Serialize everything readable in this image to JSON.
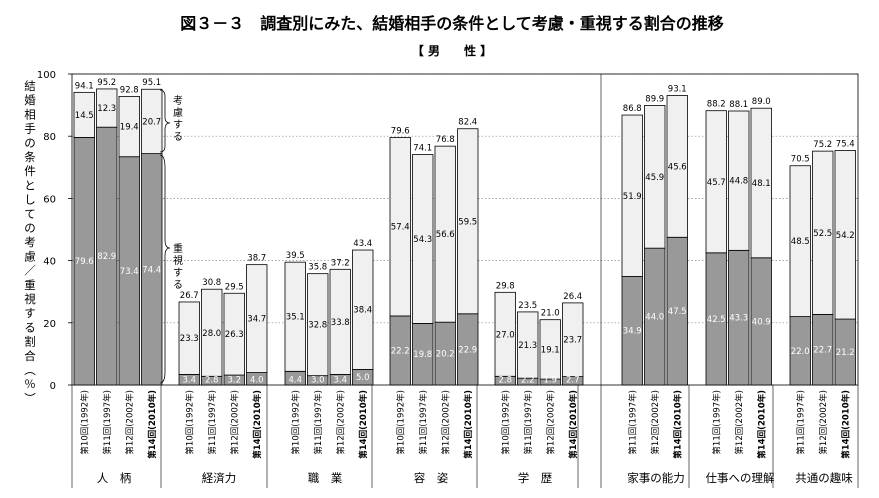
{
  "chart_data": {
    "type": "bar",
    "stacked": true,
    "title": "図３－３　調査別にみた、結婚相手の条件として考慮・重視する割合の推移",
    "subtitle": "【 男　　性 】",
    "ylabel": "結婚相手の条件としての考慮／重視する割合（％）",
    "ylim": [
      0,
      100
    ],
    "yticks": [
      0,
      20,
      40,
      60,
      80,
      100
    ],
    "grid": "dotted-horizontal",
    "series": [
      {
        "name": "重視する",
        "color": "#999999"
      },
      {
        "name": "考慮する",
        "color": "#f0f0f0"
      }
    ],
    "annotations": [
      "考慮する",
      "重視する"
    ],
    "groups": [
      {
        "label": "人　柄",
        "bars": [
          {
            "survey": "第10回(1992年)",
            "total": "94.1",
            "upper": "14.5",
            "lower": "79.6",
            "v_lower": 79.6,
            "v_total": 94.1
          },
          {
            "survey": "第11回(1997年)",
            "total": "95.2",
            "upper": "12.3",
            "lower": "82.9",
            "v_lower": 82.9,
            "v_total": 95.2
          },
          {
            "survey": "第12回(2002年)",
            "total": "92.8",
            "upper": "19.4",
            "lower": "73.4",
            "v_lower": 73.4,
            "v_total": 92.8
          },
          {
            "survey": "第14回(2010年)",
            "total": "95.1",
            "upper": "20.7",
            "lower": "74.4",
            "v_lower": 74.4,
            "v_total": 95.1,
            "bold": true
          }
        ]
      },
      {
        "label": "経済力",
        "bars": [
          {
            "survey": "第10回(1992年)",
            "total": "26.7",
            "upper": "23.3",
            "lower": "3.4",
            "v_lower": 3.4,
            "v_total": 26.7
          },
          {
            "survey": "第11回(1997年)",
            "total": "30.8",
            "upper": "28.0",
            "lower": "2.8",
            "v_lower": 2.8,
            "v_total": 30.8
          },
          {
            "survey": "第12回(2002年)",
            "total": "29.5",
            "upper": "26.3",
            "lower": "3.2",
            "v_lower": 3.2,
            "v_total": 29.5
          },
          {
            "survey": "第14回(2010年)",
            "total": "38.7",
            "upper": "34.7",
            "lower": "4.0",
            "v_lower": 4.0,
            "v_total": 38.7,
            "bold": true
          }
        ]
      },
      {
        "label": "職　業",
        "bars": [
          {
            "survey": "第10回(1992年)",
            "total": "39.5",
            "upper": "35.1",
            "lower": "4.4",
            "v_lower": 4.4,
            "v_total": 39.5
          },
          {
            "survey": "第11回(1997年)",
            "total": "35.8",
            "upper": "32.8",
            "lower": "3.0",
            "v_lower": 3.0,
            "v_total": 35.8
          },
          {
            "survey": "第12回(2002年)",
            "total": "37.2",
            "upper": "33.8",
            "lower": "3.4",
            "v_lower": 3.4,
            "v_total": 37.2
          },
          {
            "survey": "第14回(2010年)",
            "total": "43.4",
            "upper": "38.4",
            "lower": "5.0",
            "v_lower": 5.0,
            "v_total": 43.4,
            "bold": true
          }
        ]
      },
      {
        "label": "容　姿",
        "bars": [
          {
            "survey": "第10回(1992年)",
            "total": "79.6",
            "upper": "57.4",
            "lower": "22.2",
            "v_lower": 22.2,
            "v_total": 79.6
          },
          {
            "survey": "第11回(1997年)",
            "total": "74.1",
            "upper": "54.3",
            "lower": "19.8",
            "v_lower": 19.8,
            "v_total": 74.1
          },
          {
            "survey": "第12回(2002年)",
            "total": "76.8",
            "upper": "56.6",
            "lower": "20.2",
            "v_lower": 20.2,
            "v_total": 76.8
          },
          {
            "survey": "第14回(2010年)",
            "total": "82.4",
            "upper": "59.5",
            "lower": "22.9",
            "v_lower": 22.9,
            "v_total": 82.4,
            "bold": true
          }
        ]
      },
      {
        "label": "学　歴",
        "bars": [
          {
            "survey": "第10回(1992年)",
            "total": "29.8",
            "upper": "27.0",
            "lower": "2.8",
            "v_lower": 2.8,
            "v_total": 29.8
          },
          {
            "survey": "第11回(1997年)",
            "total": "23.5",
            "upper": "21.3",
            "lower": "2.2",
            "v_lower": 2.2,
            "v_total": 23.5
          },
          {
            "survey": "第12回(2002年)",
            "total": "21.0",
            "upper": "19.1",
            "lower": "1.9",
            "v_lower": 1.9,
            "v_total": 21.0
          },
          {
            "survey": "第14回(2010年)",
            "total": "26.4",
            "upper": "23.7",
            "lower": "2.7",
            "v_lower": 2.7,
            "v_total": 26.4,
            "bold": true
          }
        ]
      },
      {
        "label": "家事の能力",
        "bars": [
          {
            "survey": "第11回(1997年)",
            "total": "86.8",
            "upper": "51.9",
            "lower": "34.9",
            "v_lower": 34.9,
            "v_total": 86.8
          },
          {
            "survey": "第12回(2002年)",
            "total": "89.9",
            "upper": "45.9",
            "lower": "44.0",
            "v_lower": 44.0,
            "v_total": 89.9
          },
          {
            "survey": "第14回(2010年)",
            "total": "93.1",
            "upper": "45.6",
            "lower": "47.5",
            "v_lower": 47.5,
            "v_total": 93.1,
            "bold": true
          }
        ]
      },
      {
        "label": "仕事への理解",
        "bars": [
          {
            "survey": "第11回(1997年)",
            "total": "88.2",
            "upper": "45.7",
            "lower": "42.5",
            "v_lower": 42.5,
            "v_total": 88.2
          },
          {
            "survey": "第12回(2002年)",
            "total": "88.1",
            "upper": "44.8",
            "lower": "43.3",
            "v_lower": 43.3,
            "v_total": 88.1
          },
          {
            "survey": "第14回(2010年)",
            "total": "89.0",
            "upper": "48.1",
            "lower": "40.9",
            "v_lower": 40.9,
            "v_total": 89.0,
            "bold": true
          }
        ]
      },
      {
        "label": "共通の趣味",
        "bars": [
          {
            "survey": "第11回(1997年)",
            "total": "70.5",
            "upper": "48.5",
            "lower": "22.0",
            "v_lower": 22.0,
            "v_total": 70.5
          },
          {
            "survey": "第12回(2002年)",
            "total": "75.2",
            "upper": "52.5",
            "lower": "22.7",
            "v_lower": 22.7,
            "v_total": 75.2
          },
          {
            "survey": "第14回(2010年)",
            "total": "75.4",
            "upper": "54.2",
            "lower": "21.2",
            "v_lower": 21.2,
            "v_total": 75.4,
            "bold": true
          }
        ]
      }
    ]
  }
}
